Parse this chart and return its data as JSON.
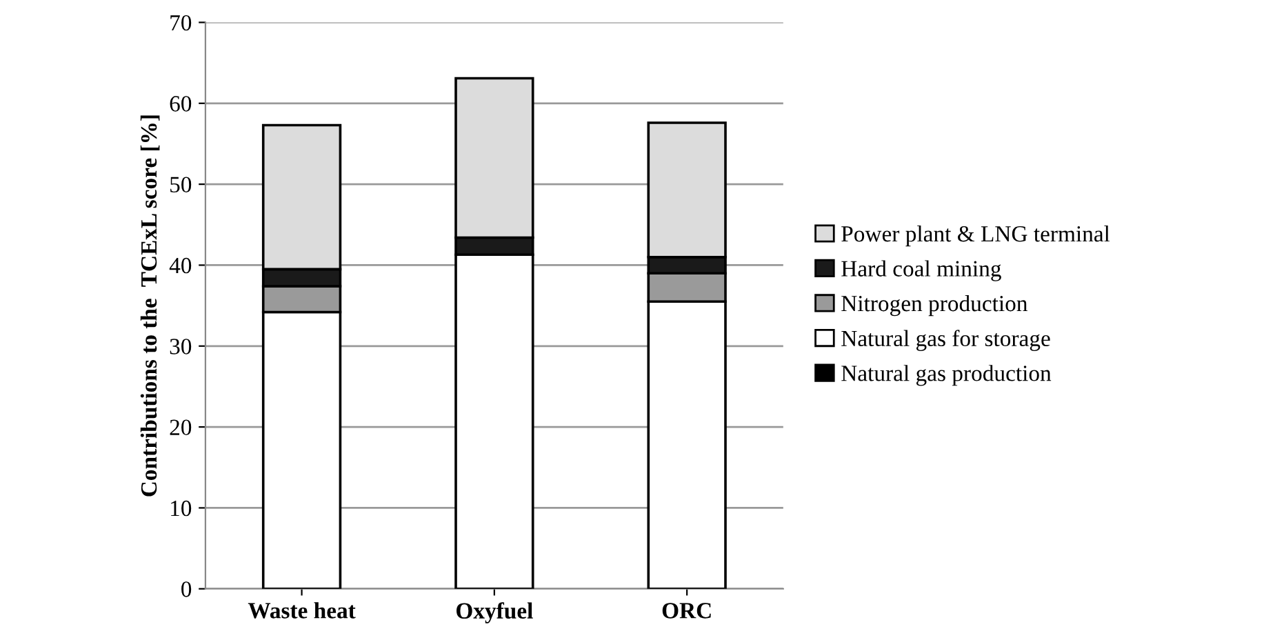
{
  "chart_data": {
    "type": "bar",
    "stacked": true,
    "ylabel": "Contributions to the  TCExL score [%]",
    "categories": [
      "Waste heat",
      "Oxyfuel",
      "ORC"
    ],
    "series": [
      {
        "name": "Natural gas production",
        "color": "#000000",
        "values": [
          null,
          null,
          null
        ]
      },
      {
        "name": "Natural gas for storage",
        "color": "#ffffff",
        "values": [
          34.2,
          41.3,
          35.5
        ]
      },
      {
        "name": "Nitrogen production",
        "color": "#9a9a9a",
        "values": [
          3.2,
          0,
          3.5
        ]
      },
      {
        "name": "Hard coal mining",
        "color": "#1a1a1a",
        "values": [
          2.1,
          2.1,
          2.0
        ]
      },
      {
        "name": "Power plant & LNG terminal",
        "color": "#dcdcdc",
        "values": [
          17.8,
          19.7,
          16.6
        ]
      }
    ],
    "ylim": [
      0,
      70
    ],
    "yticks": [
      0,
      10,
      20,
      30,
      40,
      50,
      60,
      70
    ],
    "grid": "y",
    "legend": "right"
  }
}
